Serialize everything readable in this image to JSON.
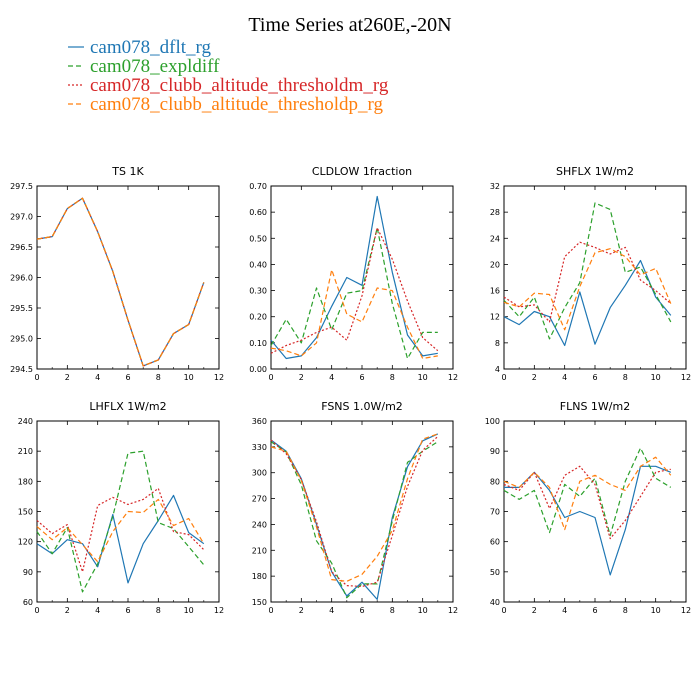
{
  "figure": {
    "title": "Time Series at260E,-20N",
    "legend": [
      {
        "label": "cam078_dflt_rg",
        "color": "#1f77b4",
        "dash": "solid"
      },
      {
        "label": "cam078_expldiff",
        "color": "#2ca02c",
        "dash": "dashed"
      },
      {
        "label": "cam078_clubb_altitude_thresholdm_rg",
        "color": "#d62728",
        "dash": "dotted"
      },
      {
        "label": "cam078_clubb_altitude_thresholdp_rg",
        "color": "#ff7f0e",
        "dash": "dashed"
      }
    ]
  },
  "chart_data": [
    {
      "type": "line",
      "title": "TS   1K",
      "x": [
        0,
        1,
        2,
        3,
        4,
        5,
        6,
        7,
        8,
        9,
        10,
        11
      ],
      "xlim": [
        0,
        12
      ],
      "xticks": [
        0,
        2,
        4,
        6,
        8,
        10,
        12
      ],
      "ylim": [
        294.5,
        297.5
      ],
      "yticks": [
        "294.5",
        "295.0",
        "295.5",
        "296.0",
        "296.5",
        "297.0",
        "297.5"
      ],
      "series": [
        {
          "name": "cam078_dflt_rg",
          "values": [
            296.63,
            296.67,
            297.13,
            297.3,
            296.75,
            296.1,
            295.3,
            294.55,
            294.65,
            295.08,
            295.23,
            295.92
          ]
        },
        {
          "name": "cam078_expldiff",
          "values": [
            296.63,
            296.67,
            297.13,
            297.3,
            296.75,
            296.1,
            295.3,
            294.55,
            294.65,
            295.08,
            295.23,
            295.92
          ]
        },
        {
          "name": "cam078_clubb_altitude_thresholdm_rg",
          "values": [
            296.63,
            296.67,
            297.13,
            297.3,
            296.75,
            296.1,
            295.3,
            294.55,
            294.65,
            295.08,
            295.23,
            295.92
          ]
        },
        {
          "name": "cam078_clubb_altitude_thresholdp_rg",
          "values": [
            296.63,
            296.67,
            297.13,
            297.3,
            296.75,
            296.1,
            295.3,
            294.55,
            294.65,
            295.08,
            295.23,
            295.92
          ]
        }
      ]
    },
    {
      "type": "line",
      "title": "CLDLOW   1fraction",
      "x": [
        0,
        1,
        2,
        3,
        4,
        5,
        6,
        7,
        8,
        9,
        10,
        11
      ],
      "xlim": [
        0,
        12
      ],
      "xticks": [
        0,
        2,
        4,
        6,
        8,
        10,
        12
      ],
      "ylim": [
        0,
        0.7
      ],
      "yticks": [
        "0.00",
        "0.10",
        "0.20",
        "0.30",
        "0.40",
        "0.50",
        "0.60",
        "0.70"
      ],
      "series": [
        {
          "name": "cam078_dflt_rg",
          "values": [
            0.11,
            0.04,
            0.05,
            0.12,
            0.24,
            0.35,
            0.32,
            0.66,
            0.37,
            0.13,
            0.05,
            0.06
          ]
        },
        {
          "name": "cam078_expldiff",
          "values": [
            0.09,
            0.19,
            0.1,
            0.31,
            0.15,
            0.29,
            0.3,
            0.54,
            0.25,
            0.04,
            0.14,
            0.14
          ]
        },
        {
          "name": "cam078_clubb_altitude_thresholdm_rg",
          "values": [
            0.06,
            0.09,
            0.11,
            0.14,
            0.16,
            0.11,
            0.28,
            0.54,
            0.42,
            0.26,
            0.12,
            0.07
          ]
        },
        {
          "name": "cam078_clubb_altitude_thresholdp_rg",
          "values": [
            0.08,
            0.07,
            0.05,
            0.1,
            0.38,
            0.21,
            0.18,
            0.31,
            0.3,
            0.16,
            0.04,
            0.05
          ]
        }
      ]
    },
    {
      "type": "line",
      "title": "SHFLX   1W/m2",
      "x": [
        0,
        1,
        2,
        3,
        4,
        5,
        6,
        7,
        8,
        9,
        10,
        11
      ],
      "xlim": [
        0,
        12
      ],
      "xticks": [
        0,
        2,
        4,
        6,
        8,
        10,
        12
      ],
      "ylim": [
        4,
        32
      ],
      "yticks": [
        "4",
        "8",
        "12",
        "16",
        "20",
        "24",
        "28",
        "32"
      ],
      "series": [
        {
          "name": "cam078_dflt_rg",
          "values": [
            12,
            10.8,
            12.8,
            12,
            7.6,
            15.8,
            7.8,
            13.4,
            16.8,
            20.6,
            15,
            12.2
          ]
        },
        {
          "name": "cam078_expldiff",
          "values": [
            14.5,
            12,
            15,
            8.6,
            13.4,
            17.2,
            29.4,
            28.4,
            18.8,
            19.6,
            15.4,
            11.2
          ]
        },
        {
          "name": "cam078_clubb_altitude_thresholdm_rg",
          "values": [
            15,
            13.5,
            13.8,
            11.2,
            21.2,
            23.4,
            22.6,
            21.6,
            22.6,
            17.6,
            16,
            14
          ]
        },
        {
          "name": "cam078_clubb_altitude_thresholdp_rg",
          "values": [
            14.2,
            13.5,
            15.6,
            15.4,
            10,
            16.6,
            21.8,
            22.4,
            21.2,
            18.4,
            19.4,
            14
          ]
        }
      ]
    },
    {
      "type": "line",
      "title": "LHFLX   1W/m2",
      "x": [
        0,
        1,
        2,
        3,
        4,
        5,
        6,
        7,
        8,
        9,
        10,
        11
      ],
      "xlim": [
        0,
        12
      ],
      "xticks": [
        0,
        2,
        4,
        6,
        8,
        10,
        12
      ],
      "ylim": [
        60,
        240
      ],
      "yticks": [
        "60",
        "90",
        "120",
        "150",
        "180",
        "210",
        "240"
      ],
      "series": [
        {
          "name": "cam078_dflt_rg",
          "values": [
            118,
            108,
            122,
            118,
            95,
            147,
            79,
            118,
            141,
            166,
            129,
            118
          ]
        },
        {
          "name": "cam078_expldiff",
          "values": [
            130,
            108,
            134,
            70,
            98,
            145,
            208,
            210,
            139,
            133,
            115,
            97
          ]
        },
        {
          "name": "cam078_clubb_altitude_thresholdm_rg",
          "values": [
            141,
            128,
            137,
            90,
            156,
            164,
            157,
            162,
            173,
            130,
            127,
            112
          ]
        },
        {
          "name": "cam078_clubb_altitude_thresholdp_rg",
          "values": [
            135,
            122,
            134,
            117,
            100,
            130,
            150,
            149,
            162,
            136,
            143,
            118
          ]
        }
      ]
    },
    {
      "type": "line",
      "title": "FSNS   1.0W/m2",
      "x": [
        0,
        1,
        2,
        3,
        4,
        5,
        6,
        7,
        8,
        9,
        10,
        11
      ],
      "xlim": [
        0,
        12
      ],
      "xticks": [
        0,
        2,
        4,
        6,
        8,
        10,
        12
      ],
      "ylim": [
        150,
        360
      ],
      "yticks": [
        "150",
        "180",
        "210",
        "240",
        "270",
        "300",
        "330",
        "360"
      ],
      "series": [
        {
          "name": "cam078_dflt_rg",
          "values": [
            338,
            325,
            293,
            240,
            185,
            157,
            173,
            153,
            248,
            307,
            337,
            345
          ]
        },
        {
          "name": "cam078_expldiff",
          "values": [
            336,
            324,
            286,
            221,
            195,
            155,
            171,
            171,
            244,
            312,
            325,
            336
          ]
        },
        {
          "name": "cam078_clubb_altitude_thresholdm_rg",
          "values": [
            338,
            322,
            292,
            243,
            185,
            169,
            168,
            173,
            227,
            284,
            326,
            342
          ]
        },
        {
          "name": "cam078_clubb_altitude_thresholdp_rg",
          "values": [
            330,
            325,
            291,
            237,
            176,
            174,
            182,
            203,
            233,
            293,
            339,
            345
          ]
        }
      ]
    },
    {
      "type": "line",
      "title": "FLNS   1W/m2",
      "x": [
        0,
        1,
        2,
        3,
        4,
        5,
        6,
        7,
        8,
        9,
        10,
        11
      ],
      "xlim": [
        0,
        12
      ],
      "xticks": [
        0,
        2,
        4,
        6,
        8,
        10,
        12
      ],
      "ylim": [
        40,
        100
      ],
      "yticks": [
        "40",
        "50",
        "60",
        "70",
        "80",
        "90",
        "100"
      ],
      "series": [
        {
          "name": "cam078_dflt_rg",
          "values": [
            78,
            78,
            83,
            77,
            68,
            70,
            68,
            49,
            64,
            85,
            85,
            83
          ]
        },
        {
          "name": "cam078_expldiff",
          "values": [
            77,
            74,
            77,
            63,
            79,
            75,
            81,
            62,
            80,
            91,
            81,
            78
          ]
        },
        {
          "name": "cam078_clubb_altitude_thresholdm_rg",
          "values": [
            79,
            77,
            83,
            71,
            82,
            85,
            79,
            61,
            67,
            75,
            83,
            84
          ]
        },
        {
          "name": "cam078_clubb_altitude_thresholdp_rg",
          "values": [
            80,
            78,
            83,
            78,
            64,
            80,
            82,
            79,
            77,
            85,
            88,
            82
          ]
        }
      ]
    }
  ]
}
